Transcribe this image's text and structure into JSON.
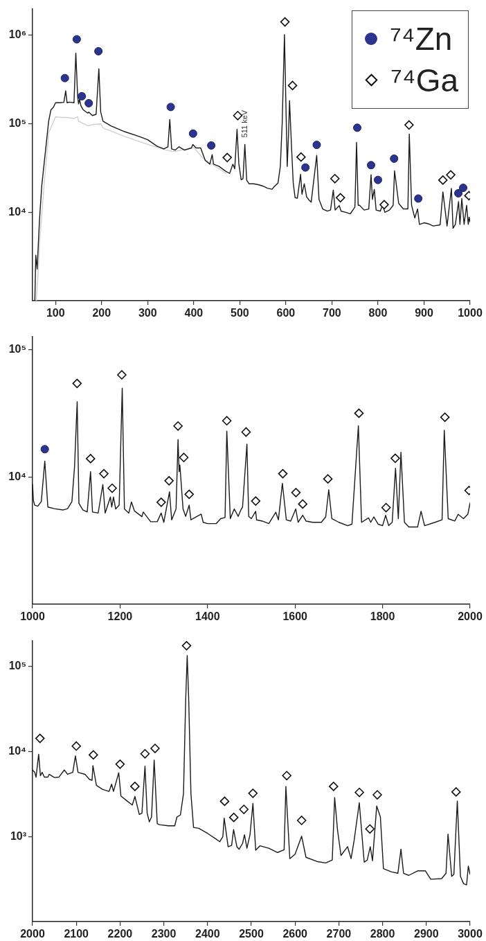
{
  "chart_data": [
    {
      "type": "line",
      "log": "y",
      "legend": "top right",
      "xlim": [
        50,
        1000
      ],
      "xticks": [
        100,
        200,
        300,
        400,
        500,
        600,
        700,
        800,
        900,
        1000
      ],
      "ylim": [
        1000,
        2000000
      ],
      "yticks": [
        {
          "value": 10000,
          "label": "10⁴"
        },
        {
          "value": 100000,
          "label": "10⁵"
        },
        {
          "value": 1000000,
          "label": "10⁶"
        }
      ],
      "annotations": [
        {
          "text": "511 keV",
          "x": 511,
          "y": 58500
        }
      ],
      "series": [
        {
          "color": "#cfcfcf",
          "x": [
            58,
            62,
            65,
            75,
            85,
            100,
            115,
            125,
            140,
            148,
            150,
            170,
            180,
            198,
            203,
            250,
            300,
            340,
            352,
            360,
            400,
            420,
            470
          ],
          "values": [
            1000,
            2000,
            4400,
            19900,
            79000,
            120000,
            118000,
            118000,
            115000,
            120000,
            107000,
            95000,
            98000,
            100000,
            90000,
            72000,
            58500,
            50500,
            49000,
            48800,
            54000,
            40900,
            27500
          ]
        },
        {
          "color": "#1a1a1a",
          "x": [
            55,
            57,
            60,
            65,
            70,
            78,
            85,
            90,
            95,
            100,
            110,
            118,
            122,
            125,
            130,
            140,
            144,
            148,
            150,
            152,
            155,
            160,
            170,
            172,
            180,
            188,
            194,
            198,
            203,
            220,
            250,
            280,
            300,
            320,
            335,
            344,
            348,
            352,
            360,
            368,
            380,
            395,
            398,
            405,
            415,
            425,
            435,
            440,
            443,
            455,
            470,
            478,
            485,
            489,
            494,
            498,
            503,
            507,
            511,
            515,
            520,
            530,
            540,
            550,
            560,
            570,
            575,
            583,
            588,
            592,
            597,
            601,
            603,
            606,
            608,
            612,
            616,
            620,
            625,
            632,
            635,
            640,
            645,
            650,
            655,
            667,
            672,
            680,
            690,
            697,
            703,
            707,
            716,
            720,
            730,
            740,
            750,
            753.5,
            757,
            760,
            770,
            780,
            785,
            788,
            792,
            796,
            805,
            810,
            815,
            825,
            833,
            836,
            845,
            855,
            865,
            868,
            873,
            880,
            886,
            890,
            900,
            910,
            920,
            935,
            941,
            950,
            959.5,
            963,
            968,
            975,
            978,
            982,
            987,
            992.5,
            996,
            998,
            1000
          ],
          "values": [
            1000,
            3270,
            2280,
            8050,
            19900,
            48900,
            107000,
            144000,
            153000,
            173000,
            173000,
            175000,
            236000,
            173000,
            176000,
            173000,
            630000,
            200000,
            168000,
            190000,
            160000,
            144000,
            132000,
            136000,
            124000,
            128000,
            418000,
            136000,
            107000,
            95000,
            81500,
            72300,
            66200,
            56000,
            52000,
            55000,
            112000,
            52000,
            50500,
            55000,
            50500,
            53400,
            58500,
            53400,
            53400,
            38600,
            35000,
            44800,
            35000,
            33000,
            29000,
            27500,
            35000,
            31000,
            86600,
            35000,
            23300,
            24000,
            58500,
            23000,
            21000,
            21000,
            20500,
            19800,
            18700,
            18200,
            19500,
            21500,
            33000,
            100000,
            1020000,
            100000,
            33000,
            80000,
            183000,
            60000,
            21500,
            14700,
            14400,
            26900,
            16000,
            21000,
            15000,
            13800,
            13000,
            44000,
            14000,
            10900,
            10300,
            10600,
            17800,
            10600,
            11900,
            10300,
            10000,
            9600,
            11500,
            61600,
            12000,
            12000,
            10600,
            10900,
            26600,
            14000,
            18200,
            10600,
            10300,
            12100,
            10000,
            10600,
            12000,
            29400,
            12600,
            10900,
            10900,
            76700,
            12000,
            8620,
            10900,
            7300,
            7600,
            7400,
            7000,
            7200,
            17000,
            7000,
            18600,
            6600,
            7300,
            13200,
            7300,
            14300,
            7300,
            12000,
            7300,
            8800,
            7800
          ]
        },
        {
          "type": "scatter",
          "name": "⁷⁴Zn",
          "marker": "circle",
          "color": "#2b3590",
          "x": [
            120.2,
            146,
            157,
            172,
            193,
            350,
            398.5,
            438,
            642.5,
            667,
            755,
            785,
            800,
            835,
            887.5,
            974.5,
            985
          ],
          "values": [
            329000,
            903000,
            205000,
            171000,
            661000,
            155000,
            77600,
            56900,
            32100,
            57800,
            90300,
            34100,
            23200,
            40400,
            14300,
            16400,
            18900
          ]
        },
        {
          "type": "scatter",
          "name": "⁷⁴Ga",
          "marker": "diamond",
          "color": "#111111",
          "x": [
            472.7,
            495.5,
            598,
            614.5,
            633,
            706.5,
            718.5,
            813.5,
            867.5,
            941,
            958,
            997.5
          ],
          "values": [
            41600,
            124000,
            1420000,
            271000,
            42100,
            24000,
            14600,
            12200,
            97000,
            23100,
            26500,
            15400
          ]
        }
      ]
    },
    {
      "type": "line",
      "log": "y",
      "xlim": [
        1000,
        2000
      ],
      "xticks": [
        1000,
        1200,
        1400,
        1600,
        1800,
        2000
      ],
      "ylim": [
        1000,
        126000
      ],
      "yticks": [
        {
          "value": 10000,
          "label": "10⁴"
        },
        {
          "value": 100000,
          "label": "10⁵"
        }
      ],
      "series": [
        {
          "color": "#1a1a1a",
          "x": [
            1000,
            1002,
            1005,
            1012,
            1020,
            1028,
            1035,
            1050,
            1070,
            1080,
            1090,
            1096,
            1102,
            1106,
            1115,
            1125,
            1132.6,
            1137,
            1150,
            1160.7,
            1166,
            1178,
            1181,
            1185,
            1190,
            1198,
            1205,
            1210,
            1220,
            1226,
            1233,
            1250,
            1253,
            1270,
            1285,
            1294,
            1300,
            1313,
            1318,
            1328,
            1332.5,
            1335,
            1336.7,
            1344,
            1350,
            1358,
            1362,
            1385.5,
            1390,
            1400,
            1420,
            1430,
            1440,
            1444,
            1452,
            1461,
            1470,
            1475,
            1480,
            1490,
            1494,
            1500,
            1510,
            1512,
            1525,
            1540,
            1556,
            1562,
            1571,
            1580,
            1590,
            1601.6,
            1607,
            1617.5,
            1625,
            1640,
            1660,
            1670,
            1677,
            1684,
            1700,
            1720,
            1730,
            1744.7,
            1752,
            1768,
            1773,
            1780,
            1790,
            1800,
            1807,
            1814,
            1822,
            1829.6,
            1836,
            1842,
            1850,
            1860,
            1880,
            1888,
            1896,
            1920,
            1936,
            1941,
            1950,
            1965,
            1972.7,
            1985,
            1995,
            2000
          ],
          "values": [
            8710,
            6540,
            5990,
            5900,
            6400,
            13300,
            5800,
            5630,
            5500,
            5630,
            6400,
            12000,
            39000,
            6200,
            5500,
            5300,
            11000,
            5300,
            5200,
            8710,
            5200,
            6950,
            5800,
            6950,
            5600,
            6000,
            49700,
            5600,
            5200,
            6360,
            5400,
            4870,
            5300,
            4450,
            4450,
            5200,
            4400,
            7630,
            4600,
            5600,
            19600,
            11000,
            12400,
            5600,
            4900,
            6000,
            4600,
            5100,
            4400,
            4300,
            4300,
            4700,
            4800,
            22900,
            4700,
            5600,
            4900,
            5400,
            5800,
            18100,
            4900,
            4700,
            5370,
            4600,
            4500,
            4300,
            5280,
            4600,
            8900,
            4600,
            4500,
            5600,
            4400,
            4990,
            4500,
            4400,
            4400,
            4850,
            7930,
            4700,
            4400,
            4140,
            4250,
            25200,
            4400,
            4770,
            4400,
            4850,
            4250,
            4140,
            4990,
            4140,
            4400,
            11700,
            4700,
            15600,
            4400,
            4040,
            4040,
            5370,
            4140,
            4400,
            4600,
            23200,
            4700,
            4500,
            5080,
            4700,
            5100,
            6250
          ]
        },
        {
          "type": "scatter",
          "marker": "circle",
          "color": "#2b3590",
          "x": [
            1028
          ],
          "values": [
            16500
          ]
        },
        {
          "type": "scatter",
          "marker": "diamond",
          "color": "#111111",
          "x": [
            1101.8,
            1132.6,
            1163,
            1182,
            1204,
            1294,
            1312,
            1332.5,
            1345.7,
            1358,
            1444,
            1488,
            1510,
            1572,
            1602,
            1617.5,
            1675,
            1746,
            1808,
            1829,
            1942.5,
            1997.7
          ],
          "values": [
            54200,
            13900,
            10600,
            8150,
            63300,
            6320,
            9320,
            25100,
            14200,
            7300,
            27600,
            22500,
            6460,
            10600,
            7530,
            6120,
            9640,
            31600,
            5740,
            14000,
            29400,
            7820
          ]
        }
      ]
    },
    {
      "type": "line",
      "log": "y",
      "xlim": [
        2000,
        3000
      ],
      "xticks": [
        2000,
        2100,
        2200,
        2300,
        2400,
        2500,
        2600,
        2700,
        2800,
        2900,
        3000
      ],
      "ylim": [
        100,
        200000
      ],
      "yticks": [
        {
          "value": 1000,
          "label": "10³"
        },
        {
          "value": 10000,
          "label": "10⁴"
        },
        {
          "value": 100000,
          "label": "10⁵"
        }
      ],
      "series": [
        {
          "color": "#1a1a1a",
          "x": [
            2000,
            2005,
            2008,
            2014,
            2018,
            2022,
            2027,
            2035,
            2038,
            2050,
            2060,
            2072.6,
            2080,
            2092,
            2098,
            2104,
            2120,
            2130,
            2136,
            2138,
            2146,
            2160,
            2175,
            2180.7,
            2185,
            2197,
            2202,
            2215,
            2228,
            2234,
            2244,
            2250,
            2257,
            2262,
            2267,
            2272,
            2278,
            2285,
            2290,
            2310,
            2325,
            2330,
            2338,
            2345,
            2350,
            2353.5,
            2357,
            2362,
            2368,
            2380,
            2400,
            2420,
            2428,
            2435,
            2438,
            2447,
            2455,
            2459.5,
            2467,
            2472,
            2480,
            2484.4,
            2490,
            2497,
            2503.7,
            2510,
            2520,
            2540,
            2560,
            2575,
            2579,
            2588,
            2600,
            2615,
            2625,
            2650,
            2670,
            2685,
            2690.5,
            2697,
            2705,
            2720,
            2728,
            2735,
            2746.8,
            2758,
            2765,
            2771.8,
            2777,
            2786.6,
            2795,
            2802,
            2820,
            2835,
            2842,
            2848,
            2860,
            2880,
            2898,
            2910,
            2935,
            2945,
            2949.6,
            2958,
            2963,
            2970.8,
            2978,
            2985,
            2992,
            2996,
            3000
          ],
          "values": [
            6070,
            5700,
            5000,
            9300,
            5200,
            5700,
            5000,
            5000,
            5400,
            4950,
            5000,
            6070,
            5400,
            5700,
            8900,
            5700,
            5400,
            4710,
            4600,
            6840,
            4000,
            3600,
            3400,
            4130,
            3400,
            5640,
            3000,
            2650,
            2350,
            2960,
            1820,
            1880,
            6740,
            1880,
            1490,
            1700,
            7950,
            1420,
            1380,
            1340,
            1340,
            1700,
            1800,
            3200,
            40000,
            135000,
            40000,
            3200,
            1280,
            1250,
            1090,
            930,
            870,
            1000,
            1650,
            760,
            785,
            1210,
            760,
            710,
            830,
            1050,
            730,
            1050,
            2460,
            690,
            780,
            730,
            650,
            700,
            3890,
            550,
            620,
            1010,
            570,
            510,
            490,
            530,
            2880,
            1200,
            600,
            760,
            550,
            900,
            2500,
            500,
            530,
            760,
            520,
            2290,
            1700,
            420,
            385,
            370,
            710,
            370,
            350,
            395,
            395,
            315,
            320,
            370,
            1070,
            340,
            360,
            2620,
            340,
            280,
            270,
            450,
            360
          ]
        },
        {
          "type": "scatter",
          "marker": "diamond",
          "color": "#111111",
          "x": [
            2017,
            2100,
            2139,
            2200,
            2234,
            2257,
            2280,
            2352,
            2439,
            2460,
            2483,
            2503.7,
            2581,
            2615,
            2688,
            2747,
            2771,
            2788,
            2968
          ],
          "values": [
            14300,
            11600,
            9140,
            7100,
            3890,
            9420,
            10900,
            176000,
            2600,
            1680,
            2090,
            3230,
            5220,
            1550,
            3890,
            3310,
            1230,
            3100,
            3350
          ]
        }
      ]
    }
  ]
}
